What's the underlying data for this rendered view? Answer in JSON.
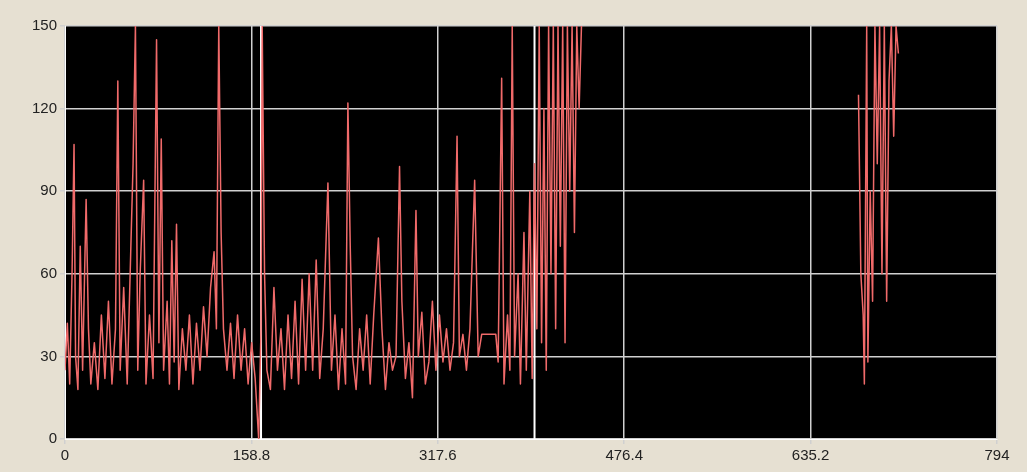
{
  "chart_data": {
    "type": "line",
    "xlim": [
      0,
      794
    ],
    "ylim": [
      0,
      150
    ],
    "xticks": [
      0,
      158.8,
      317.6,
      476.4,
      635.2,
      794
    ],
    "yticks": [
      0,
      30,
      60,
      90,
      120,
      150
    ],
    "grid": true,
    "marker": "none",
    "line_style": "solid",
    "ref_lines": [
      {
        "axis": "x",
        "value": 167,
        "label": null,
        "color": "#ffffff"
      },
      {
        "axis": "x",
        "value": 400,
        "label": null,
        "color": "#ffffff"
      }
    ],
    "series": [
      {
        "color": "#f06a6a",
        "x": [
          0,
          2,
          4,
          6,
          7.7,
          9,
          11,
          13,
          15,
          18,
          20,
          22,
          25,
          28,
          31,
          34,
          37,
          40,
          43,
          45,
          47,
          50,
          53,
          56,
          58,
          60,
          62,
          64,
          67,
          69,
          72,
          75,
          78,
          80,
          82,
          84,
          87,
          89,
          91,
          93,
          95,
          97,
          100,
          103,
          106,
          109,
          112,
          115,
          118,
          121,
          124,
          127,
          129,
          131,
          133,
          135,
          138,
          141,
          144,
          147,
          150,
          153,
          156,
          159,
          162,
          165,
          167,
          168,
          170,
          172,
          175,
          178,
          181,
          184,
          187,
          190,
          193,
          196,
          199,
          202,
          205,
          208,
          211,
          214,
          217,
          220,
          224,
          227,
          230,
          233,
          236,
          239,
          241,
          243,
          245,
          248,
          251,
          254,
          257,
          260,
          263,
          267,
          270,
          273,
          276,
          279,
          282,
          285,
          287,
          290,
          293,
          296,
          299,
          301,
          304,
          307,
          310,
          313,
          316,
          319,
          322,
          325,
          328,
          331,
          334,
          336,
          339,
          342,
          345,
          349,
          352,
          355,
          367,
          369,
          372,
          374,
          377,
          379,
          381,
          383,
          386,
          388,
          391,
          393,
          396,
          398,
          400,
          402,
          404,
          406,
          408,
          410,
          412,
          414,
          416,
          418,
          420,
          422,
          424,
          426,
          428,
          430,
          432,
          434,
          436,
          438,
          440,
          560,
          676,
          678,
          680,
          681,
          683,
          684,
          686,
          688,
          690,
          692,
          694,
          696,
          698,
          700,
          702,
          704,
          706,
          708,
          710
        ],
        "values": [
          25,
          42,
          20,
          60,
          107,
          30,
          18,
          70,
          25,
          87,
          40,
          20,
          35,
          18,
          45,
          22,
          50,
          20,
          40,
          130,
          25,
          55,
          20,
          68,
          100,
          150,
          25,
          60,
          94,
          20,
          45,
          22,
          145,
          35,
          109,
          25,
          50,
          20,
          72,
          28,
          78,
          18,
          40,
          25,
          45,
          20,
          42,
          25,
          48,
          30,
          55,
          68,
          40,
          150,
          75,
          40,
          25,
          42,
          22,
          45,
          25,
          40,
          20,
          35,
          22,
          0,
          40,
          150,
          60,
          25,
          18,
          55,
          25,
          40,
          18,
          45,
          22,
          50,
          20,
          58,
          25,
          60,
          25,
          65,
          22,
          40,
          93,
          25,
          45,
          18,
          40,
          20,
          122,
          70,
          30,
          18,
          40,
          25,
          45,
          20,
          45,
          73,
          40,
          18,
          35,
          25,
          30,
          99,
          50,
          22,
          35,
          15,
          83,
          30,
          46,
          20,
          28,
          50,
          25,
          45,
          28,
          40,
          25,
          35,
          110,
          30,
          38,
          25,
          40,
          94,
          30,
          38,
          38,
          28,
          131,
          20,
          45,
          25,
          150,
          30,
          60,
          20,
          75,
          25,
          90,
          22,
          100,
          40,
          150,
          35,
          120,
          25,
          150,
          60,
          150,
          40,
          150,
          70,
          150,
          35,
          150,
          90,
          150,
          75,
          150,
          120,
          150,
          null,
          125,
          60,
          45,
          20,
          150,
          28,
          90,
          50,
          150,
          100,
          150,
          60,
          150,
          50,
          130,
          150,
          110,
          150,
          140
        ]
      }
    ]
  }
}
